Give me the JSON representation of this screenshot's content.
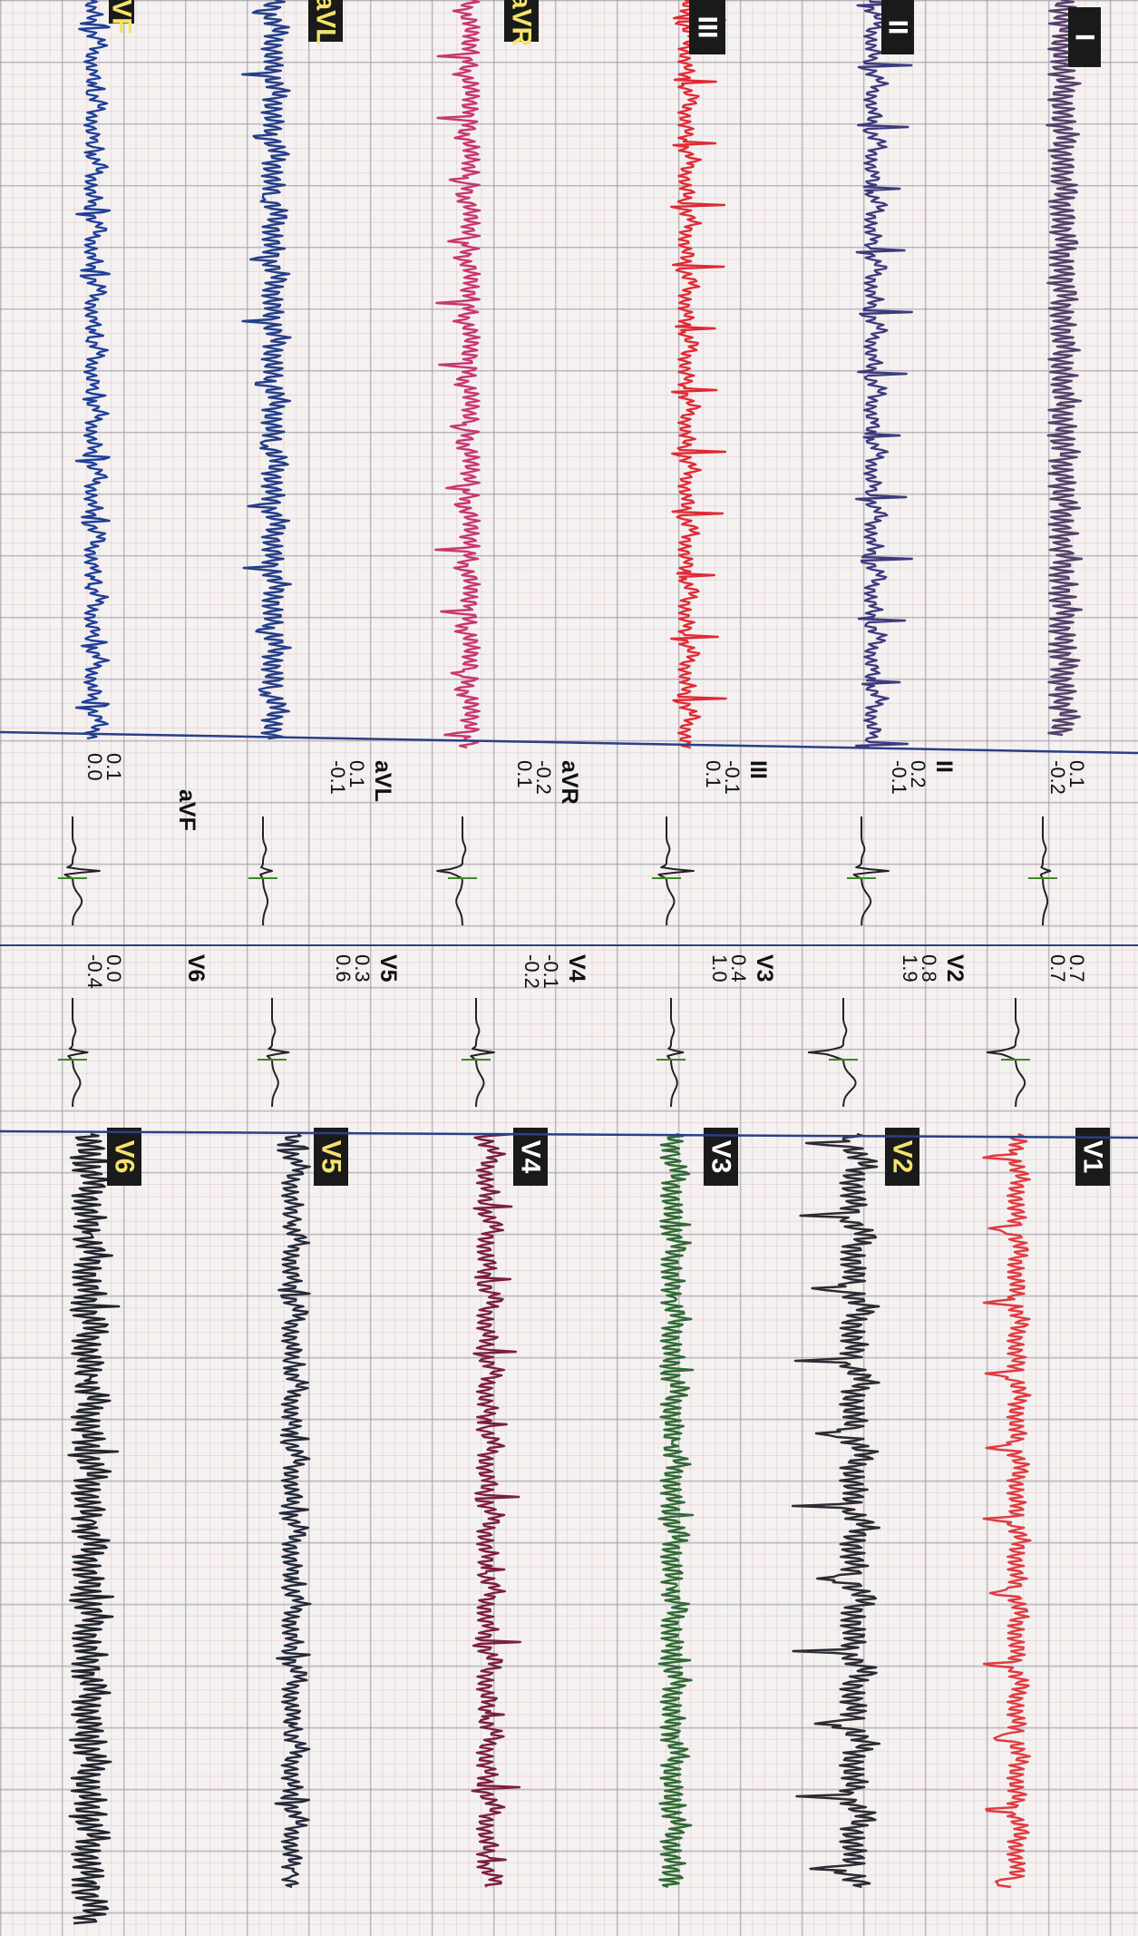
{
  "strip_labels": [
    "I",
    "II",
    "III",
    "aVR",
    "aVL",
    "aVF",
    "V1",
    "V2",
    "V3",
    "V4",
    "V5",
    "V6"
  ],
  "panel_leads": [
    {
      "name": "I",
      "v1": "0.1",
      "v2": "-0.2"
    },
    {
      "name": "II",
      "v1": "0.2",
      "v2": "-0.1"
    },
    {
      "name": "III",
      "v1": "-0.1",
      "v2": "0.1"
    },
    {
      "name": "aVR",
      "v1": "-0.2",
      "v2": "0.1"
    },
    {
      "name": "aVL",
      "v1": "0.1",
      "v2": "-0.1"
    },
    {
      "name": "aVF",
      "v1": "0.1",
      "v2": "0.0"
    },
    {
      "name": "V1",
      "v1": "0.7",
      "v2": "0.7"
    },
    {
      "name": "V2",
      "v1": "0.8",
      "v2": "1.9"
    },
    {
      "name": "V3",
      "v1": "0.4",
      "v2": "1.0"
    },
    {
      "name": "V4",
      "v1": "-0.1",
      "v2": "-0.2"
    },
    {
      "name": "V5",
      "v1": "0.3",
      "v2": "0.6"
    },
    {
      "name": "V6",
      "v1": "0.0",
      "v2": "-0.4"
    }
  ],
  "colors": {
    "I": "#55406a",
    "II": "#3c3a7e",
    "III": "#e02a34",
    "aVR": "#c83670",
    "aVL": "#243e88",
    "aVF": "#1e3f98",
    "V1": "#e03a40",
    "V2": "#2b2b33",
    "V3": "#2f6a34",
    "V4": "#7c1e3c",
    "V5": "#232a3a",
    "V6": "#20242c",
    "panel_trace": "#222222",
    "panel_marker": "#3a8a2a",
    "label_bg": "#1a1a1a",
    "label_text": "#ffffff",
    "label_text_alt": "#f4e36a",
    "separator": "#2a3f86"
  }
}
